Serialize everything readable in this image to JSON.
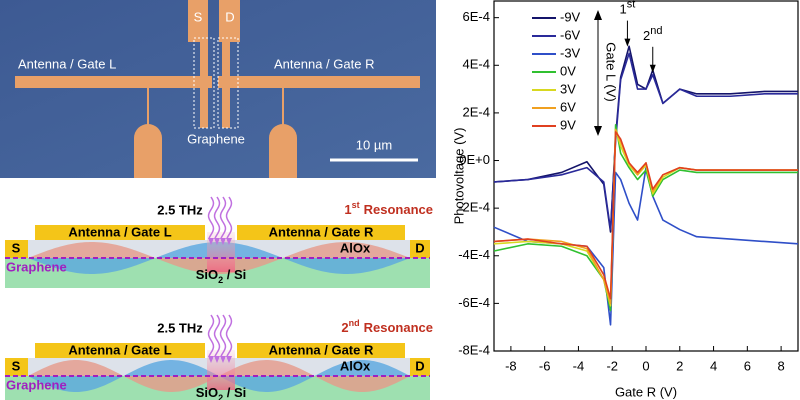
{
  "micrograph": {
    "source": "S",
    "drain": "D",
    "gate_left": "Antenna / Gate L",
    "gate_right": "Antenna / Gate R",
    "channel": "Graphene",
    "scale": "10 µm"
  },
  "schematics": [
    {
      "frequency": "2.5 THz",
      "ordinal": "1",
      "suffix": "st",
      "mode": "Resonance",
      "gate_left": "Antenna / Gate L",
      "gate_right": "Antenna / Gate R",
      "dielectric": "AlOx",
      "source": "S",
      "drain": "D",
      "channel": "Graphene",
      "substrate": [
        "SiO",
        "2",
        " / Si"
      ]
    },
    {
      "frequency": "2.5 THz",
      "ordinal": "2",
      "suffix": "nd",
      "mode": "Resonance",
      "gate_left": "Antenna / Gate L",
      "gate_right": "Antenna / Gate R",
      "dielectric": "AlOx",
      "source": "S",
      "drain": "D",
      "channel": "Graphene",
      "substrate": [
        "SiO",
        "2",
        " / Si"
      ]
    }
  ],
  "chart_data": {
    "type": "line",
    "x_label": "Gate R (V)",
    "y_label": "Photovoltage (V)",
    "legend_title": "Gate L (V)",
    "annotations": [
      {
        "text": "1",
        "sup": "st",
        "x": -1.1,
        "y": 0.00047
      },
      {
        "text": "2",
        "sup": "nd",
        "x": 0.4,
        "y": 0.00036
      }
    ],
    "xlim": [
      -9,
      9
    ],
    "ylim": [
      -0.0008,
      0.00067
    ],
    "xticks": [
      -8,
      -6,
      -4,
      -2,
      0,
      2,
      4,
      6,
      8
    ],
    "yticks": [
      {
        "value": 0.0006,
        "label": "6E-4"
      },
      {
        "value": 0.0004,
        "label": "4E-4"
      },
      {
        "value": 0.0002,
        "label": "2E-4"
      },
      {
        "value": 0,
        "label": "0E+0"
      },
      {
        "value": -0.0002,
        "label": "-2E-4"
      },
      {
        "value": -0.0004,
        "label": "-4E-4"
      },
      {
        "value": -0.0006,
        "label": "-6E-4"
      },
      {
        "value": -0.0008,
        "label": "-8E-4"
      }
    ],
    "x": [
      -9,
      -7,
      -5,
      -3.5,
      -2.5,
      -2.1,
      -1.8,
      -1.5,
      -1,
      -0.5,
      0,
      0.4,
      1,
      2,
      3,
      5,
      7,
      9
    ],
    "series": [
      {
        "name": "-9V",
        "color": "#14146a",
        "values": [
          -9e-05,
          -8e-05,
          -5e-05,
          -5e-06,
          -0.0001,
          -0.0003,
          0.0001,
          0.00035,
          0.00048,
          0.00032,
          0.0003,
          0.00038,
          0.00024,
          0.0003,
          0.00028,
          0.00028,
          0.00029,
          0.00029
        ]
      },
      {
        "name": "-6V",
        "color": "#2a2a9a",
        "values": [
          -9e-05,
          -8e-05,
          -6e-05,
          -3e-05,
          -9e-05,
          -0.00029,
          8e-05,
          0.00034,
          0.00045,
          0.0003,
          0.0003,
          0.00036,
          0.00024,
          0.0003,
          0.00027,
          0.00027,
          0.00028,
          0.00028
        ]
      },
      {
        "name": "-3V",
        "color": "#2f4fc8",
        "values": [
          -0.00028,
          -0.00034,
          -0.00035,
          -0.00036,
          -0.00045,
          -0.00069,
          -5e-05,
          -8e-05,
          -0.00018,
          -0.00025,
          -3e-05,
          -0.00015,
          -0.00025,
          -0.00029,
          -0.00032,
          -0.00033,
          -0.00034,
          -0.00035
        ]
      },
      {
        "name": "0V",
        "color": "#30c030",
        "values": [
          -0.00038,
          -0.00035,
          -0.00036,
          -0.0004,
          -0.0005,
          -0.00063,
          0.00015,
          3e-05,
          -3e-05,
          -8e-05,
          -4e-05,
          -0.00015,
          -8e-05,
          -4e-05,
          -5e-05,
          -5e-05,
          -5e-05,
          -5e-05
        ]
      },
      {
        "name": "3V",
        "color": "#d8d820",
        "values": [
          -0.00035,
          -0.00034,
          -0.00035,
          -0.00038,
          -0.0005,
          -0.00061,
          0.00013,
          6e-05,
          -2e-05,
          -6e-05,
          -2e-05,
          -0.00014,
          -7e-05,
          -3e-05,
          -4e-05,
          -4e-05,
          -4e-05,
          -4e-05
        ]
      },
      {
        "name": "6V",
        "color": "#f0a020",
        "values": [
          -0.00034,
          -0.00033,
          -0.00034,
          -0.00037,
          -0.0005,
          -0.0006,
          0.00013,
          8e-05,
          -1e-05,
          -6e-05,
          -1e-05,
          -0.00013,
          -6e-05,
          -3e-05,
          -4e-05,
          -4e-05,
          -4e-05,
          -4e-05
        ]
      },
      {
        "name": "9V",
        "color": "#e04020",
        "values": [
          -0.00034,
          -0.00033,
          -0.00035,
          -0.00036,
          -0.00048,
          -0.00058,
          0.00012,
          9e-05,
          -1e-05,
          -5e-05,
          -1e-05,
          -0.00012,
          -6e-05,
          -3e-05,
          -4e-05,
          -4e-05,
          -4e-05,
          -4e-05
        ]
      }
    ]
  }
}
